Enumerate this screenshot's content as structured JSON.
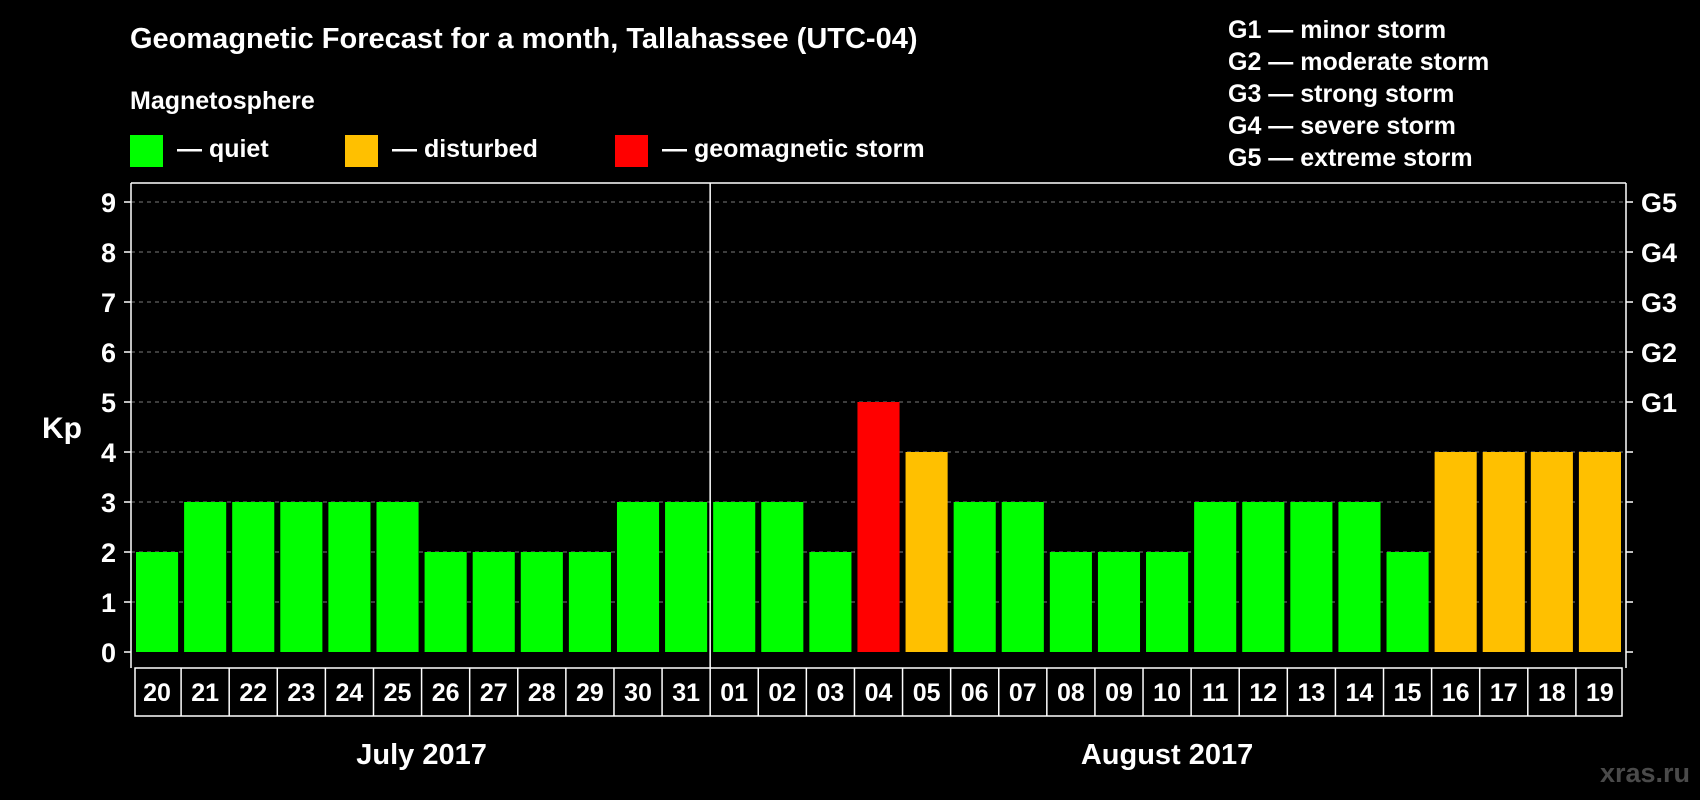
{
  "chart_data": {
    "type": "bar",
    "title": "Geomagnetic Forecast for a month, Tallahassee (UTC-04)",
    "legend_title": "Magnetosphere",
    "legend": [
      {
        "key": "quiet",
        "label": "— quiet",
        "color": "#00ff00"
      },
      {
        "key": "disturbed",
        "label": "— disturbed",
        "color": "#ffc000"
      },
      {
        "key": "storm",
        "label": "— geomagnetic storm",
        "color": "#ff0000"
      }
    ],
    "storm_scale": [
      "G1 — minor storm",
      "G2 — moderate storm",
      "G3 — strong storm",
      "G4 — severe storm",
      "G5 — extreme storm"
    ],
    "ylabel": "Kp",
    "ylim": [
      0,
      9
    ],
    "yticks": [
      0,
      1,
      2,
      3,
      4,
      5,
      6,
      7,
      8,
      9
    ],
    "right_ticks": [
      {
        "value": 5,
        "label": "G1"
      },
      {
        "value": 6,
        "label": "G2"
      },
      {
        "value": 7,
        "label": "G3"
      },
      {
        "value": 8,
        "label": "G4"
      },
      {
        "value": 9,
        "label": "G5"
      }
    ],
    "categories": [
      "20",
      "21",
      "22",
      "23",
      "24",
      "25",
      "26",
      "27",
      "28",
      "29",
      "30",
      "31",
      "01",
      "02",
      "03",
      "04",
      "05",
      "06",
      "07",
      "08",
      "09",
      "10",
      "11",
      "12",
      "13",
      "14",
      "15",
      "16",
      "17",
      "18",
      "19"
    ],
    "values": [
      2,
      3,
      3,
      3,
      3,
      3,
      2,
      2,
      2,
      2,
      3,
      3,
      3,
      3,
      2,
      5,
      4,
      3,
      3,
      2,
      2,
      2,
      3,
      3,
      3,
      3,
      2,
      4,
      4,
      4,
      4
    ],
    "levels": [
      "quiet",
      "quiet",
      "quiet",
      "quiet",
      "quiet",
      "quiet",
      "quiet",
      "quiet",
      "quiet",
      "quiet",
      "quiet",
      "quiet",
      "quiet",
      "quiet",
      "quiet",
      "storm",
      "disturbed",
      "quiet",
      "quiet",
      "quiet",
      "quiet",
      "quiet",
      "quiet",
      "quiet",
      "quiet",
      "quiet",
      "quiet",
      "disturbed",
      "disturbed",
      "disturbed",
      "disturbed"
    ],
    "months": [
      {
        "label": "July 2017",
        "days": 12
      },
      {
        "label": "August 2017",
        "days": 19
      }
    ],
    "grid": true
  },
  "watermark": "xras.ru"
}
